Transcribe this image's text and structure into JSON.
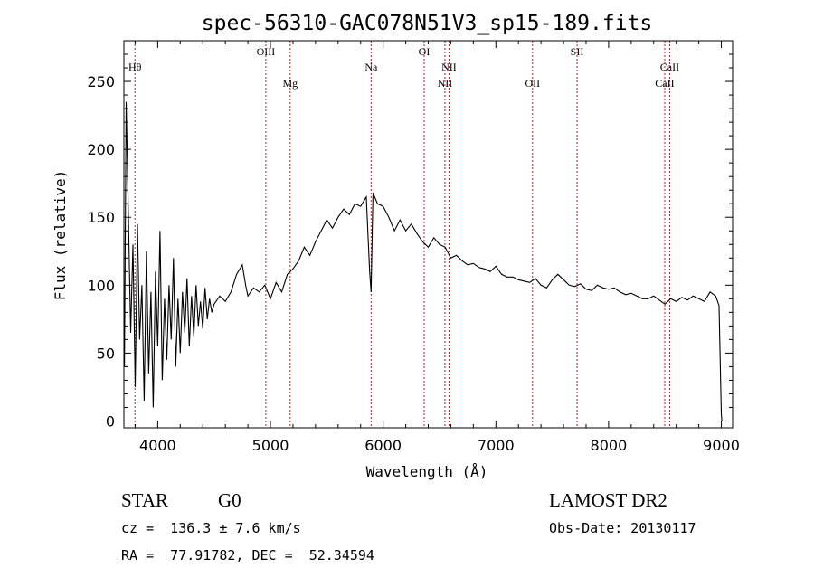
{
  "chart_data": {
    "type": "line",
    "title": "spec-56310-GAC078N51V3_sp15-189.fits",
    "xlabel": "Wavelength (Å)",
    "ylabel": "Flux (relative)",
    "xlim": [
      3700,
      9100
    ],
    "ylim": [
      -5,
      280
    ],
    "x_ticks": [
      4000,
      5000,
      6000,
      7000,
      8000,
      9000
    ],
    "y_ticks": [
      0,
      50,
      100,
      150,
      200,
      250
    ],
    "line_color": "#000000",
    "marker_color": "#b22222",
    "grid": false,
    "lines": [
      {
        "label": "Hθ",
        "x": 3798,
        "row": "upper"
      },
      {
        "label": "OIII",
        "x": 4959,
        "row": "top"
      },
      {
        "label": "Mg",
        "x": 5175,
        "row": "lower"
      },
      {
        "label": "Na",
        "x": 5893,
        "row": "upper"
      },
      {
        "label": "OI",
        "x": 6364,
        "row": "top"
      },
      {
        "label": "NII",
        "x": 6548,
        "row": "lower"
      },
      {
        "label": "NII",
        "x": 6584,
        "row": "upper"
      },
      {
        "label": "OII",
        "x": 7325,
        "row": "lower"
      },
      {
        "label": "SII",
        "x": 7720,
        "row": "top"
      },
      {
        "label": "CaII",
        "x": 8498,
        "row": "lower"
      },
      {
        "label": "CaII",
        "x": 8542,
        "row": "upper"
      }
    ],
    "series": [
      {
        "x": [
          3705,
          3720,
          3740,
          3760,
          3780,
          3800,
          3820,
          3840,
          3860,
          3880,
          3900,
          3920,
          3940,
          3960,
          3980,
          4000,
          4020,
          4040,
          4060,
          4080,
          4100,
          4120,
          4140,
          4160,
          4180,
          4200,
          4220,
          4240,
          4260,
          4280,
          4300,
          4320,
          4340,
          4360,
          4380,
          4400,
          4420,
          4440,
          4460,
          4480,
          4500,
          4550,
          4600,
          4650,
          4700,
          4750,
          4780,
          4800,
          4850,
          4900,
          4950,
          5000,
          5050,
          5100,
          5150,
          5200,
          5250,
          5300,
          5350,
          5400,
          5450,
          5500,
          5550,
          5600,
          5650,
          5700,
          5750,
          5800,
          5850,
          5880,
          5893,
          5910,
          5950,
          6000,
          6050,
          6100,
          6150,
          6200,
          6250,
          6300,
          6350,
          6400,
          6450,
          6500,
          6550,
          6600,
          6650,
          6700,
          6750,
          6800,
          6850,
          6900,
          6950,
          7000,
          7050,
          7100,
          7150,
          7200,
          7250,
          7300,
          7350,
          7400,
          7450,
          7500,
          7550,
          7600,
          7650,
          7700,
          7750,
          7800,
          7850,
          7900,
          7950,
          8000,
          8050,
          8100,
          8150,
          8200,
          8250,
          8300,
          8350,
          8400,
          8450,
          8500,
          8550,
          8600,
          8650,
          8700,
          8750,
          8800,
          8850,
          8900,
          8950,
          8980,
          9000,
          9005
        ],
        "y": [
          40,
          235,
          150,
          65,
          130,
          25,
          145,
          60,
          100,
          15,
          125,
          35,
          95,
          10,
          110,
          55,
          140,
          30,
          90,
          45,
          100,
          60,
          120,
          40,
          90,
          50,
          95,
          65,
          105,
          55,
          92,
          62,
          100,
          70,
          88,
          68,
          98,
          75,
          90,
          80,
          86,
          92,
          88,
          95,
          108,
          115,
          100,
          92,
          98,
          95,
          100,
          90,
          102,
          95,
          108,
          112,
          118,
          128,
          122,
          132,
          140,
          148,
          142,
          150,
          156,
          152,
          160,
          158,
          165,
          110,
          95,
          168,
          160,
          158,
          150,
          140,
          148,
          140,
          145,
          138,
          132,
          128,
          135,
          130,
          128,
          120,
          122,
          118,
          115,
          116,
          113,
          112,
          110,
          114,
          108,
          106,
          106,
          104,
          103,
          102,
          105,
          100,
          98,
          104,
          108,
          104,
          100,
          99,
          101,
          97,
          96,
          100,
          98,
          97,
          98,
          95,
          93,
          94,
          92,
          90,
          90,
          92,
          89,
          86,
          90,
          88,
          91,
          89,
          92,
          90,
          88,
          95,
          92,
          85,
          5,
          0
        ]
      }
    ]
  },
  "footer": {
    "object_class": "STAR",
    "subclass": "G0",
    "redshift": "cz =  136.3 ± 7.6 km/s",
    "coords": "RA =  77.91782, DEC =  52.34594",
    "survey": "LAMOST DR2",
    "obs_date": "Obs-Date: 20130117"
  }
}
